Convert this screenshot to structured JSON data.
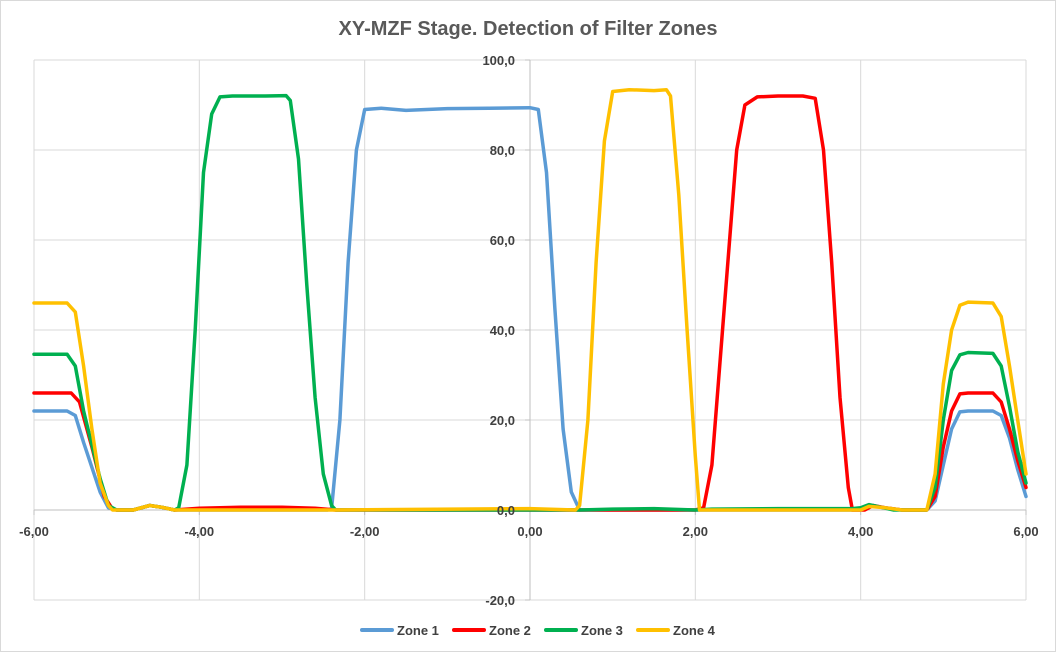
{
  "chart_data": {
    "type": "line",
    "title": "XY-MZF Stage. Detection of Filter Zones",
    "xlabel": "",
    "ylabel": "",
    "xlim": [
      -6,
      6
    ],
    "ylim": [
      -20,
      100
    ],
    "x_ticks": [
      -6,
      -4,
      -2,
      0,
      2,
      4,
      6
    ],
    "x_tick_labels": [
      "-6,00",
      "-4,00",
      "-2,00",
      "0,00",
      "2,00",
      "4,00",
      "6,00"
    ],
    "y_ticks": [
      -20,
      0,
      20,
      40,
      60,
      80,
      100
    ],
    "y_tick_labels": [
      "-20,0",
      "0,0",
      "20,0",
      "40,0",
      "60,0",
      "80,0",
      "100,0"
    ],
    "grid": true,
    "legend_position": "bottom",
    "series": [
      {
        "name": "Zone 1",
        "color": "#5b9bd5",
        "points": [
          [
            -6,
            22
          ],
          [
            -5.6,
            22
          ],
          [
            -5.5,
            21
          ],
          [
            -5.4,
            15
          ],
          [
            -5.2,
            4
          ],
          [
            -5.1,
            0.5
          ],
          [
            -5,
            0
          ],
          [
            -4.8,
            0
          ],
          [
            -4.6,
            1
          ],
          [
            -4.45,
            0.6
          ],
          [
            -4.3,
            0
          ],
          [
            -2.45,
            0
          ],
          [
            -2.4,
            0.3
          ],
          [
            -2.3,
            20
          ],
          [
            -2.2,
            55
          ],
          [
            -2.1,
            80
          ],
          [
            -2,
            89
          ],
          [
            -1.8,
            89.3
          ],
          [
            -1.5,
            88.8
          ],
          [
            -1,
            89.2
          ],
          [
            -0.5,
            89.3
          ],
          [
            0,
            89.4
          ],
          [
            0.1,
            89
          ],
          [
            0.2,
            75
          ],
          [
            0.3,
            45
          ],
          [
            0.4,
            18
          ],
          [
            0.5,
            4
          ],
          [
            0.6,
            0
          ],
          [
            2,
            0
          ],
          [
            4,
            0
          ],
          [
            4.1,
            1
          ],
          [
            4.3,
            0.5
          ],
          [
            4.5,
            0
          ],
          [
            4.8,
            0
          ],
          [
            4.9,
            2
          ],
          [
            5,
            10
          ],
          [
            5.1,
            18
          ],
          [
            5.2,
            21.8
          ],
          [
            5.3,
            22
          ],
          [
            5.6,
            22
          ],
          [
            5.7,
            21
          ],
          [
            5.8,
            16
          ],
          [
            5.9,
            9
          ],
          [
            6,
            3
          ]
        ]
      },
      {
        "name": "Zone 2",
        "color": "#ff0000",
        "points": [
          [
            -6,
            26
          ],
          [
            -5.55,
            26
          ],
          [
            -5.45,
            24
          ],
          [
            -5.3,
            14
          ],
          [
            -5.15,
            3
          ],
          [
            -5.05,
            0.2
          ],
          [
            -5,
            0
          ],
          [
            -4.8,
            0
          ],
          [
            -4.6,
            1
          ],
          [
            -4.45,
            0.6
          ],
          [
            -4.3,
            0
          ],
          [
            -4,
            0.4
          ],
          [
            -3.5,
            0.6
          ],
          [
            -3,
            0.6
          ],
          [
            -2.6,
            0.4
          ],
          [
            -2.35,
            0
          ],
          [
            0,
            0
          ],
          [
            2,
            0
          ],
          [
            2.1,
            0.5
          ],
          [
            2.2,
            10
          ],
          [
            2.35,
            45
          ],
          [
            2.5,
            80
          ],
          [
            2.6,
            90
          ],
          [
            2.75,
            91.8
          ],
          [
            3,
            92
          ],
          [
            3.3,
            92
          ],
          [
            3.45,
            91.5
          ],
          [
            3.55,
            80
          ],
          [
            3.65,
            55
          ],
          [
            3.75,
            25
          ],
          [
            3.85,
            5
          ],
          [
            3.9,
            0
          ],
          [
            4.05,
            0
          ],
          [
            4.15,
            1
          ],
          [
            4.3,
            0.5
          ],
          [
            4.5,
            0
          ],
          [
            4.8,
            0
          ],
          [
            4.9,
            3
          ],
          [
            5,
            14
          ],
          [
            5.1,
            22
          ],
          [
            5.2,
            25.8
          ],
          [
            5.3,
            26
          ],
          [
            5.6,
            26
          ],
          [
            5.7,
            24
          ],
          [
            5.8,
            18
          ],
          [
            5.9,
            11
          ],
          [
            6,
            5
          ]
        ]
      },
      {
        "name": "Zone 3",
        "color": "#00b050",
        "points": [
          [
            -6,
            34.6
          ],
          [
            -5.6,
            34.6
          ],
          [
            -5.5,
            32
          ],
          [
            -5.4,
            22
          ],
          [
            -5.2,
            7
          ],
          [
            -5.1,
            1
          ],
          [
            -5,
            0
          ],
          [
            -4.8,
            0
          ],
          [
            -4.6,
            1
          ],
          [
            -4.45,
            0.6
          ],
          [
            -4.3,
            0
          ],
          [
            -4.25,
            0.5
          ],
          [
            -4.15,
            10
          ],
          [
            -4.05,
            40
          ],
          [
            -3.95,
            75
          ],
          [
            -3.85,
            88
          ],
          [
            -3.75,
            91.8
          ],
          [
            -3.6,
            92
          ],
          [
            -3.2,
            92
          ],
          [
            -2.95,
            92.1
          ],
          [
            -2.9,
            91
          ],
          [
            -2.8,
            78
          ],
          [
            -2.7,
            50
          ],
          [
            -2.6,
            25
          ],
          [
            -2.5,
            8
          ],
          [
            -2.4,
            1
          ],
          [
            -2.35,
            0
          ],
          [
            0,
            0
          ],
          [
            0.6,
            0
          ],
          [
            1,
            0.2
          ],
          [
            1.5,
            0.3
          ],
          [
            2,
            0
          ],
          [
            2.2,
            0.2
          ],
          [
            3,
            0.3
          ],
          [
            3.9,
            0.3
          ],
          [
            4,
            0.5
          ],
          [
            4.1,
            1.2
          ],
          [
            4.25,
            0.6
          ],
          [
            4.4,
            0
          ],
          [
            4.8,
            0
          ],
          [
            4.9,
            5
          ],
          [
            5,
            20
          ],
          [
            5.1,
            31
          ],
          [
            5.2,
            34.5
          ],
          [
            5.3,
            35
          ],
          [
            5.6,
            34.8
          ],
          [
            5.7,
            32
          ],
          [
            5.8,
            23
          ],
          [
            5.9,
            13
          ],
          [
            6,
            6
          ]
        ]
      },
      {
        "name": "Zone 4",
        "color": "#ffc000",
        "points": [
          [
            -6,
            46
          ],
          [
            -5.6,
            46
          ],
          [
            -5.5,
            44
          ],
          [
            -5.4,
            32
          ],
          [
            -5.3,
            18
          ],
          [
            -5.2,
            6
          ],
          [
            -5.1,
            1
          ],
          [
            -5.05,
            0
          ],
          [
            -4.8,
            0
          ],
          [
            -4.6,
            1
          ],
          [
            -4.45,
            0.6
          ],
          [
            -4.3,
            0
          ],
          [
            -2.35,
            0
          ],
          [
            0,
            0.3
          ],
          [
            0.55,
            0
          ],
          [
            0.6,
            1
          ],
          [
            0.7,
            20
          ],
          [
            0.8,
            55
          ],
          [
            0.9,
            82
          ],
          [
            1,
            93
          ],
          [
            1.2,
            93.4
          ],
          [
            1.5,
            93.2
          ],
          [
            1.65,
            93.4
          ],
          [
            1.7,
            92
          ],
          [
            1.8,
            70
          ],
          [
            1.9,
            40
          ],
          [
            2,
            12
          ],
          [
            2.05,
            0
          ],
          [
            4,
            0
          ],
          [
            4.1,
            0.8
          ],
          [
            4.3,
            0.5
          ],
          [
            4.5,
            0
          ],
          [
            4.8,
            0
          ],
          [
            4.9,
            8
          ],
          [
            5,
            28
          ],
          [
            5.1,
            40
          ],
          [
            5.2,
            45.5
          ],
          [
            5.3,
            46.2
          ],
          [
            5.6,
            46
          ],
          [
            5.7,
            43
          ],
          [
            5.8,
            32
          ],
          [
            5.9,
            20
          ],
          [
            6,
            8
          ]
        ]
      }
    ]
  }
}
